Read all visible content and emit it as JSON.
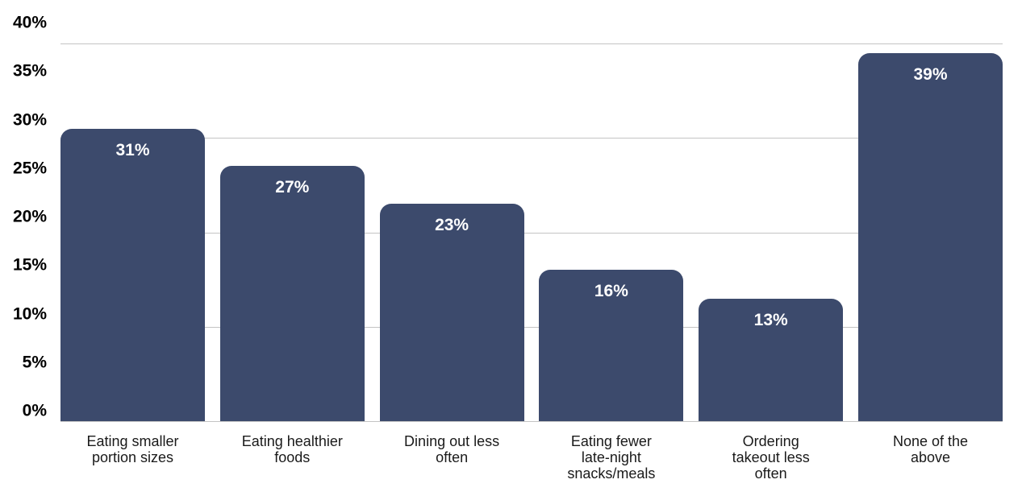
{
  "chart_data": {
    "type": "bar",
    "title": "",
    "xlabel": "",
    "ylabel": "",
    "categories": [
      "Eating smaller portion sizes",
      "Eating healthier foods",
      "Dining out less often",
      "Eating fewer late-night snacks/meals",
      "Ordering takeout less often",
      "None of the above"
    ],
    "category_lines": [
      [
        "Eating smaller",
        "portion sizes"
      ],
      [
        "Eating healthier",
        "foods"
      ],
      [
        "Dining out less",
        "often"
      ],
      [
        "Eating fewer",
        "late-night",
        "snacks/meals"
      ],
      [
        "Ordering",
        "takeout less",
        "often"
      ],
      [
        "None of the",
        "above"
      ]
    ],
    "values": [
      31,
      27,
      23,
      16,
      13,
      39
    ],
    "data_labels": [
      "31%",
      "27%",
      "23%",
      "16%",
      "13%",
      "39%"
    ],
    "y_ticks": [
      "0%",
      "5%",
      "10%",
      "15%",
      "20%",
      "25%",
      "30%",
      "35%",
      "40%"
    ],
    "ylim": [
      0,
      40
    ],
    "gridline_values": [
      0,
      10,
      20,
      30,
      40
    ],
    "grid": "horizontal-only",
    "legend": "none",
    "bar_color": "#3c4a6c",
    "value_label_color": "#ffffff",
    "axis_tick_color": "#000000",
    "category_label_color": "#1a1a1a",
    "grid_color": "#c4c4c4",
    "background_color": "#ffffff"
  }
}
